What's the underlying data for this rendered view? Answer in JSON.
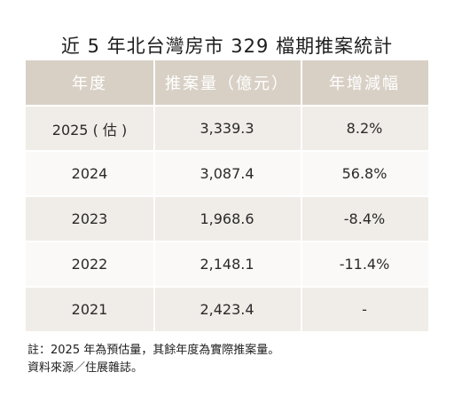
{
  "title": "近 5 年北台灣房市 329 檔期推案統計",
  "table": {
    "headers": [
      "年度",
      "推案量（億元）",
      "年增減幅"
    ],
    "rows": [
      [
        "2025 ( 估 )",
        "3,339.3",
        "8.2%"
      ],
      [
        "2024",
        "3,087.4",
        "56.8%"
      ],
      [
        "2023",
        "1,968.6",
        "-8.4%"
      ],
      [
        "2022",
        "2,148.1",
        "-11.4%"
      ],
      [
        "2021",
        "2,423.4",
        "-"
      ]
    ]
  },
  "notes": {
    "note": "註：2025 年為預估量，其餘年度為實際推案量。",
    "source": "資料來源／住展雜誌。"
  },
  "colors": {
    "header_bg": "#d8d0c5",
    "row_odd_bg": "#f0ece7",
    "row_even_bg": "#faf9f7"
  }
}
